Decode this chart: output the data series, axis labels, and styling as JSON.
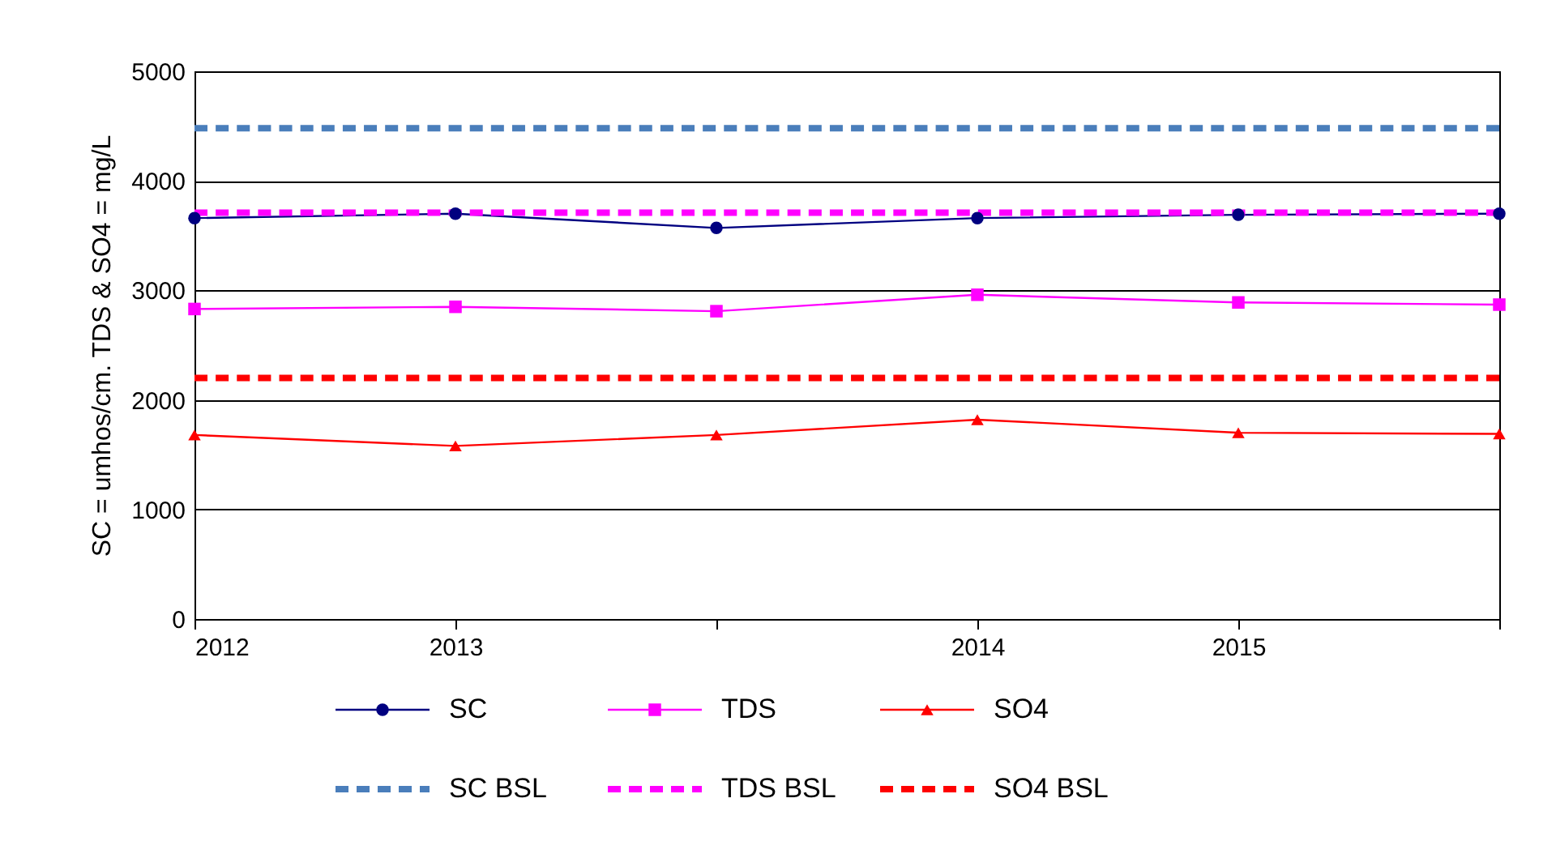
{
  "chart_data": {
    "type": "line",
    "ylabel": "SC = umhos/cm. TDS & SO4 = mg/L",
    "categories": [
      "2012",
      "2013",
      null,
      "2014",
      "2015",
      null
    ],
    "ylim": [
      0,
      5000
    ],
    "yticks": [
      0,
      1000,
      2000,
      3000,
      4000,
      5000
    ],
    "grid": "y",
    "legend": "bottom",
    "series": [
      {
        "name": "SC",
        "color": "#000080",
        "marker": "circle",
        "line_style": "solid",
        "values": [
          3660,
          3700,
          3570,
          3660,
          3690,
          3700
        ]
      },
      {
        "name": "TDS",
        "color": "#ff00ff",
        "marker": "square",
        "line_style": "solid",
        "values": [
          2830,
          2850,
          2810,
          2960,
          2890,
          2870
        ]
      },
      {
        "name": "SO4",
        "color": "#ff0000",
        "marker": "triangle",
        "line_style": "solid",
        "values": [
          1680,
          1580,
          1680,
          1820,
          1700,
          1690
        ]
      },
      {
        "name": "SC BSL",
        "color": "#4a7ebb",
        "marker": "none",
        "line_style": "dashed",
        "values": [
          4480,
          4480,
          4480,
          4480,
          4480,
          4480
        ]
      },
      {
        "name": "TDS BSL",
        "color": "#ff00ff",
        "marker": "none",
        "line_style": "dashed",
        "values": [
          3710,
          3710,
          3710,
          3710,
          3710,
          3710
        ]
      },
      {
        "name": "SO4 BSL",
        "color": "#ff0000",
        "marker": "none",
        "line_style": "dashed",
        "values": [
          2200,
          2200,
          2200,
          2200,
          2200,
          2200
        ]
      }
    ]
  }
}
